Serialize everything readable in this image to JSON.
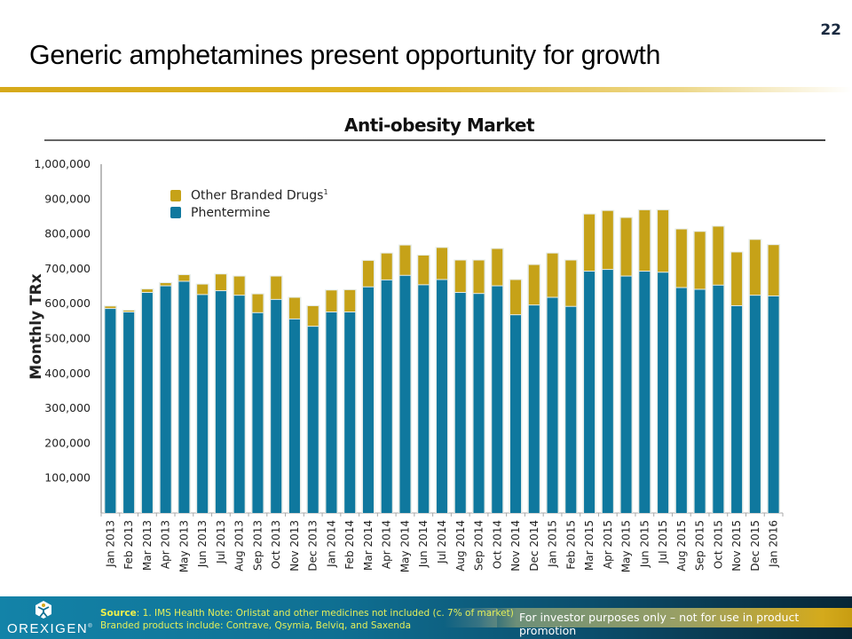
{
  "page": {
    "number": "22",
    "title": "Generic amphetamines present opportunity for growth"
  },
  "legend": {
    "items": [
      {
        "label": "Other Branded Drugs",
        "superscript": "1",
        "color": "#c6a218"
      },
      {
        "label": "Phentermine",
        "superscript": "",
        "color": "#0f789e"
      }
    ]
  },
  "footer": {
    "source_label": "Source",
    "source_text": ": 1. IMS Health  Note: Orlistat and other medicines not included (c. 7% of market)",
    "source_line2": "Branded products include:  Contrave, Qsymia, Belviq, and Saxenda",
    "disclaimer": "For investor purposes only – not for use in product promotion",
    "logo_text": "OREXIGEN",
    "logo_mark": "®"
  },
  "colors": {
    "phentermine": "#0f789e",
    "other_branded": "#c6a218",
    "accent_gold": "#d6a91a",
    "footer_blue": "#0f6f92"
  },
  "chart_data": {
    "type": "bar",
    "stacked": true,
    "title": "Anti-obesity Market",
    "xlabel": "",
    "ylabel": "Monthly TRx",
    "ylim": [
      0,
      1000000
    ],
    "yticks": [
      100000,
      200000,
      300000,
      400000,
      500000,
      600000,
      700000,
      800000,
      900000,
      1000000
    ],
    "ytick_labels": [
      "100,000",
      "200,000",
      "300,000",
      "400,000",
      "500,000",
      "600,000",
      "700,000",
      "800,000",
      "900,000",
      "1,000,000"
    ],
    "grid": false,
    "legend_position": "top-left",
    "categories": [
      "Jan 2013",
      "Feb 2013",
      "Mar 2013",
      "Apr 2013",
      "May 2013",
      "Jun 2013",
      "Jul 2013",
      "Aug 2013",
      "Sep 2013",
      "Oct 2013",
      "Nov 2013",
      "Dec 2013",
      "Jan 2014",
      "Feb 2014",
      "Mar 2014",
      "Apr 2014",
      "May 2014",
      "Jun 2014",
      "Jul 2014",
      "Aug 2014",
      "Sep 2014",
      "Oct 2014",
      "Nov 2014",
      "Dec 2014",
      "Jan 2015",
      "Feb 2015",
      "Mar 2015",
      "Apr 2015",
      "May 2015",
      "Jun 2015",
      "Jul 2015",
      "Aug 2015",
      "Sep 2015",
      "Oct 2015",
      "Nov 2015",
      "Dec 2015",
      "Jan 2016"
    ],
    "series": [
      {
        "name": "Phentermine",
        "values": [
          585000,
          575000,
          631000,
          650000,
          663000,
          625000,
          636000,
          623000,
          573000,
          611000,
          555000,
          534000,
          575000,
          575000,
          647000,
          667000,
          680000,
          653000,
          668000,
          631000,
          628000,
          650000,
          567000,
          595000,
          617000,
          591000,
          692000,
          697000,
          678000,
          692000,
          689000,
          645000,
          640000,
          652000,
          593000,
          623000,
          621000
        ]
      },
      {
        "name": "Other Branded Drugs",
        "values": [
          7000,
          5000,
          10000,
          9000,
          19000,
          30000,
          48000,
          55000,
          54000,
          67000,
          62000,
          59000,
          63000,
          64000,
          76000,
          77000,
          87000,
          85000,
          92000,
          93000,
          96000,
          107000,
          101000,
          116000,
          127000,
          133000,
          164000,
          169000,
          168000,
          176000,
          179000,
          168000,
          166000,
          169000,
          154000,
          160000,
          147000
        ]
      }
    ]
  }
}
